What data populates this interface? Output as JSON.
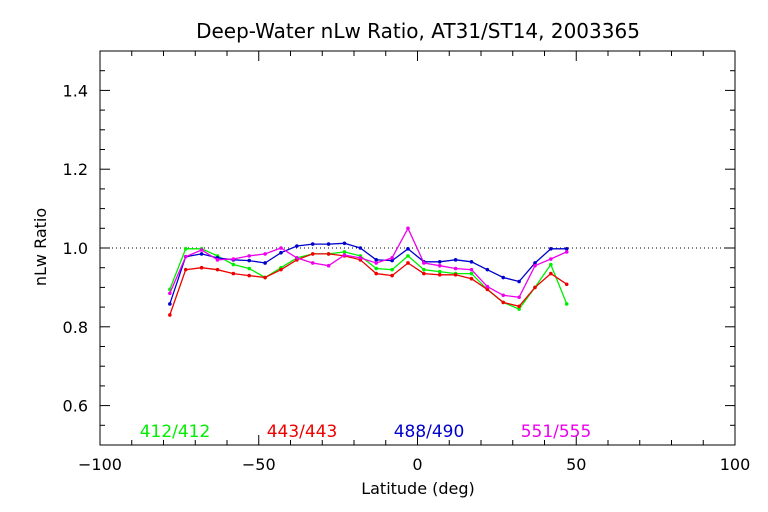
{
  "chart_data": {
    "type": "line",
    "title": "Deep-Water nLw Ratio, AT31/ST14, 2003365",
    "xlabel": "Latitude (deg)",
    "ylabel": "nLw Ratio",
    "xlim": [
      -100,
      100
    ],
    "ylim": [
      0.5,
      1.5
    ],
    "xticks": [
      -100,
      -50,
      0,
      50,
      100
    ],
    "xtick_labels": [
      "−100",
      "−50",
      "0",
      "50",
      "100"
    ],
    "yticks": [
      0.6,
      0.8,
      1.0,
      1.2,
      1.4
    ],
    "ytick_labels": [
      "0.6",
      "0.8",
      "1.0",
      "1.2",
      "1.4"
    ],
    "reference_line": 1.0,
    "grid": false,
    "legend_position": "bottom, inside plot",
    "series": [
      {
        "name": "412/412",
        "color": "#00ee00",
        "x": [
          -78,
          -73,
          -68,
          -63,
          -58,
          -53,
          -48,
          -43,
          -38,
          -33,
          -28,
          -23,
          -18,
          -13,
          -8,
          -3,
          2,
          7,
          12,
          17,
          22,
          27,
          32,
          37,
          42,
          47
        ],
        "y": [
          0.895,
          0.998,
          0.998,
          0.98,
          0.958,
          0.948,
          0.925,
          0.95,
          0.975,
          0.985,
          0.985,
          0.99,
          0.98,
          0.948,
          0.945,
          0.98,
          0.945,
          0.94,
          0.935,
          0.935,
          0.895,
          0.862,
          0.845,
          0.9,
          0.958,
          0.858
        ]
      },
      {
        "name": "443/443",
        "color": "#ee0000",
        "x": [
          -78,
          -73,
          -68,
          -63,
          -58,
          -53,
          -48,
          -43,
          -38,
          -33,
          -28,
          -23,
          -18,
          -13,
          -8,
          -3,
          2,
          7,
          12,
          17,
          22,
          27,
          32,
          37,
          42,
          47
        ],
        "y": [
          0.83,
          0.945,
          0.95,
          0.945,
          0.935,
          0.93,
          0.925,
          0.945,
          0.97,
          0.985,
          0.985,
          0.98,
          0.97,
          0.935,
          0.93,
          0.962,
          0.935,
          0.932,
          0.932,
          0.922,
          0.895,
          0.862,
          0.852,
          0.9,
          0.935,
          0.908
        ]
      },
      {
        "name": "488/490",
        "color": "#0000cc",
        "x": [
          -78,
          -73,
          -68,
          -63,
          -58,
          -53,
          -48,
          -43,
          -38,
          -33,
          -28,
          -23,
          -18,
          -13,
          -8,
          -3,
          2,
          7,
          12,
          17,
          22,
          27,
          32,
          37,
          42,
          47
        ],
        "y": [
          0.858,
          0.978,
          0.985,
          0.975,
          0.97,
          0.968,
          0.962,
          0.988,
          1.005,
          1.01,
          1.01,
          1.012,
          1.0,
          0.97,
          0.968,
          0.998,
          0.965,
          0.965,
          0.97,
          0.965,
          0.945,
          0.925,
          0.915,
          0.962,
          0.998,
          0.998
        ]
      },
      {
        "name": "551/555",
        "color": "#ee00ee",
        "x": [
          -78,
          -73,
          -68,
          -63,
          -58,
          -53,
          -48,
          -43,
          -38,
          -33,
          -28,
          -23,
          -18,
          -13,
          -8,
          -3,
          2,
          7,
          12,
          17,
          22,
          27,
          32,
          37,
          42,
          47
        ],
        "y": [
          0.885,
          0.978,
          0.995,
          0.97,
          0.972,
          0.98,
          0.985,
          1.0,
          0.975,
          0.962,
          0.955,
          0.982,
          0.975,
          0.962,
          0.975,
          1.05,
          0.962,
          0.955,
          0.948,
          0.945,
          0.902,
          0.88,
          0.875,
          0.955,
          0.972,
          0.99
        ]
      }
    ]
  }
}
